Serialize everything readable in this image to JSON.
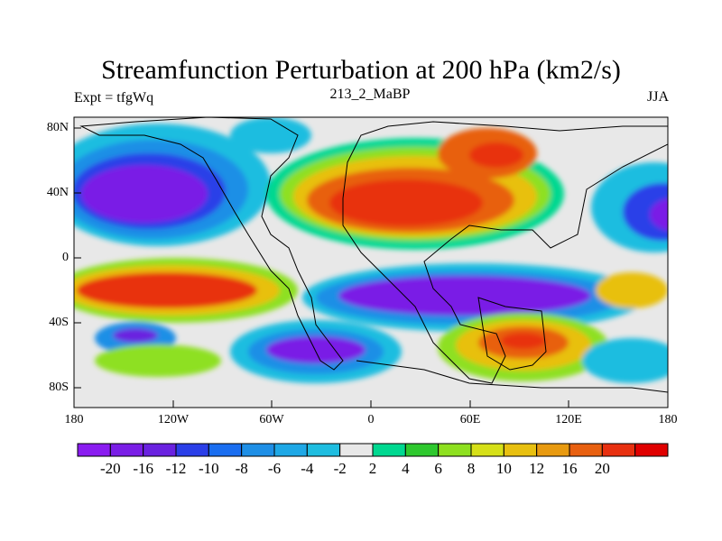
{
  "title": "Streamfunction Perturbation at 200 hPa (km2/s)",
  "subtitle_left": "Expt = tfgWq",
  "subtitle_center": "213_2_MaBP",
  "subtitle_right": "JJA",
  "lat_labels": [
    "80N",
    "40N",
    "0",
    "40S",
    "80S"
  ],
  "lon_labels": [
    "180",
    "120W",
    "60W",
    "0",
    "60E",
    "120E",
    "180"
  ],
  "colorbar": {
    "colors": [
      "#8a1cf0",
      "#7a1ee6",
      "#6a22e0",
      "#2b3fe8",
      "#1a6ef0",
      "#1f8fe6",
      "#1fa8e6",
      "#1fbde0",
      "#e8e8e8",
      "#00d890",
      "#2ec82e",
      "#8ee020",
      "#d6e018",
      "#e8c010",
      "#e89a10",
      "#e86010",
      "#e83010",
      "#e00000"
    ],
    "labels": [
      "-20",
      "-16",
      "-12",
      "-10",
      "-8",
      "-6",
      "-4",
      "-2",
      "2",
      "4",
      "6",
      "8",
      "10",
      "12",
      "16",
      "20"
    ]
  }
}
